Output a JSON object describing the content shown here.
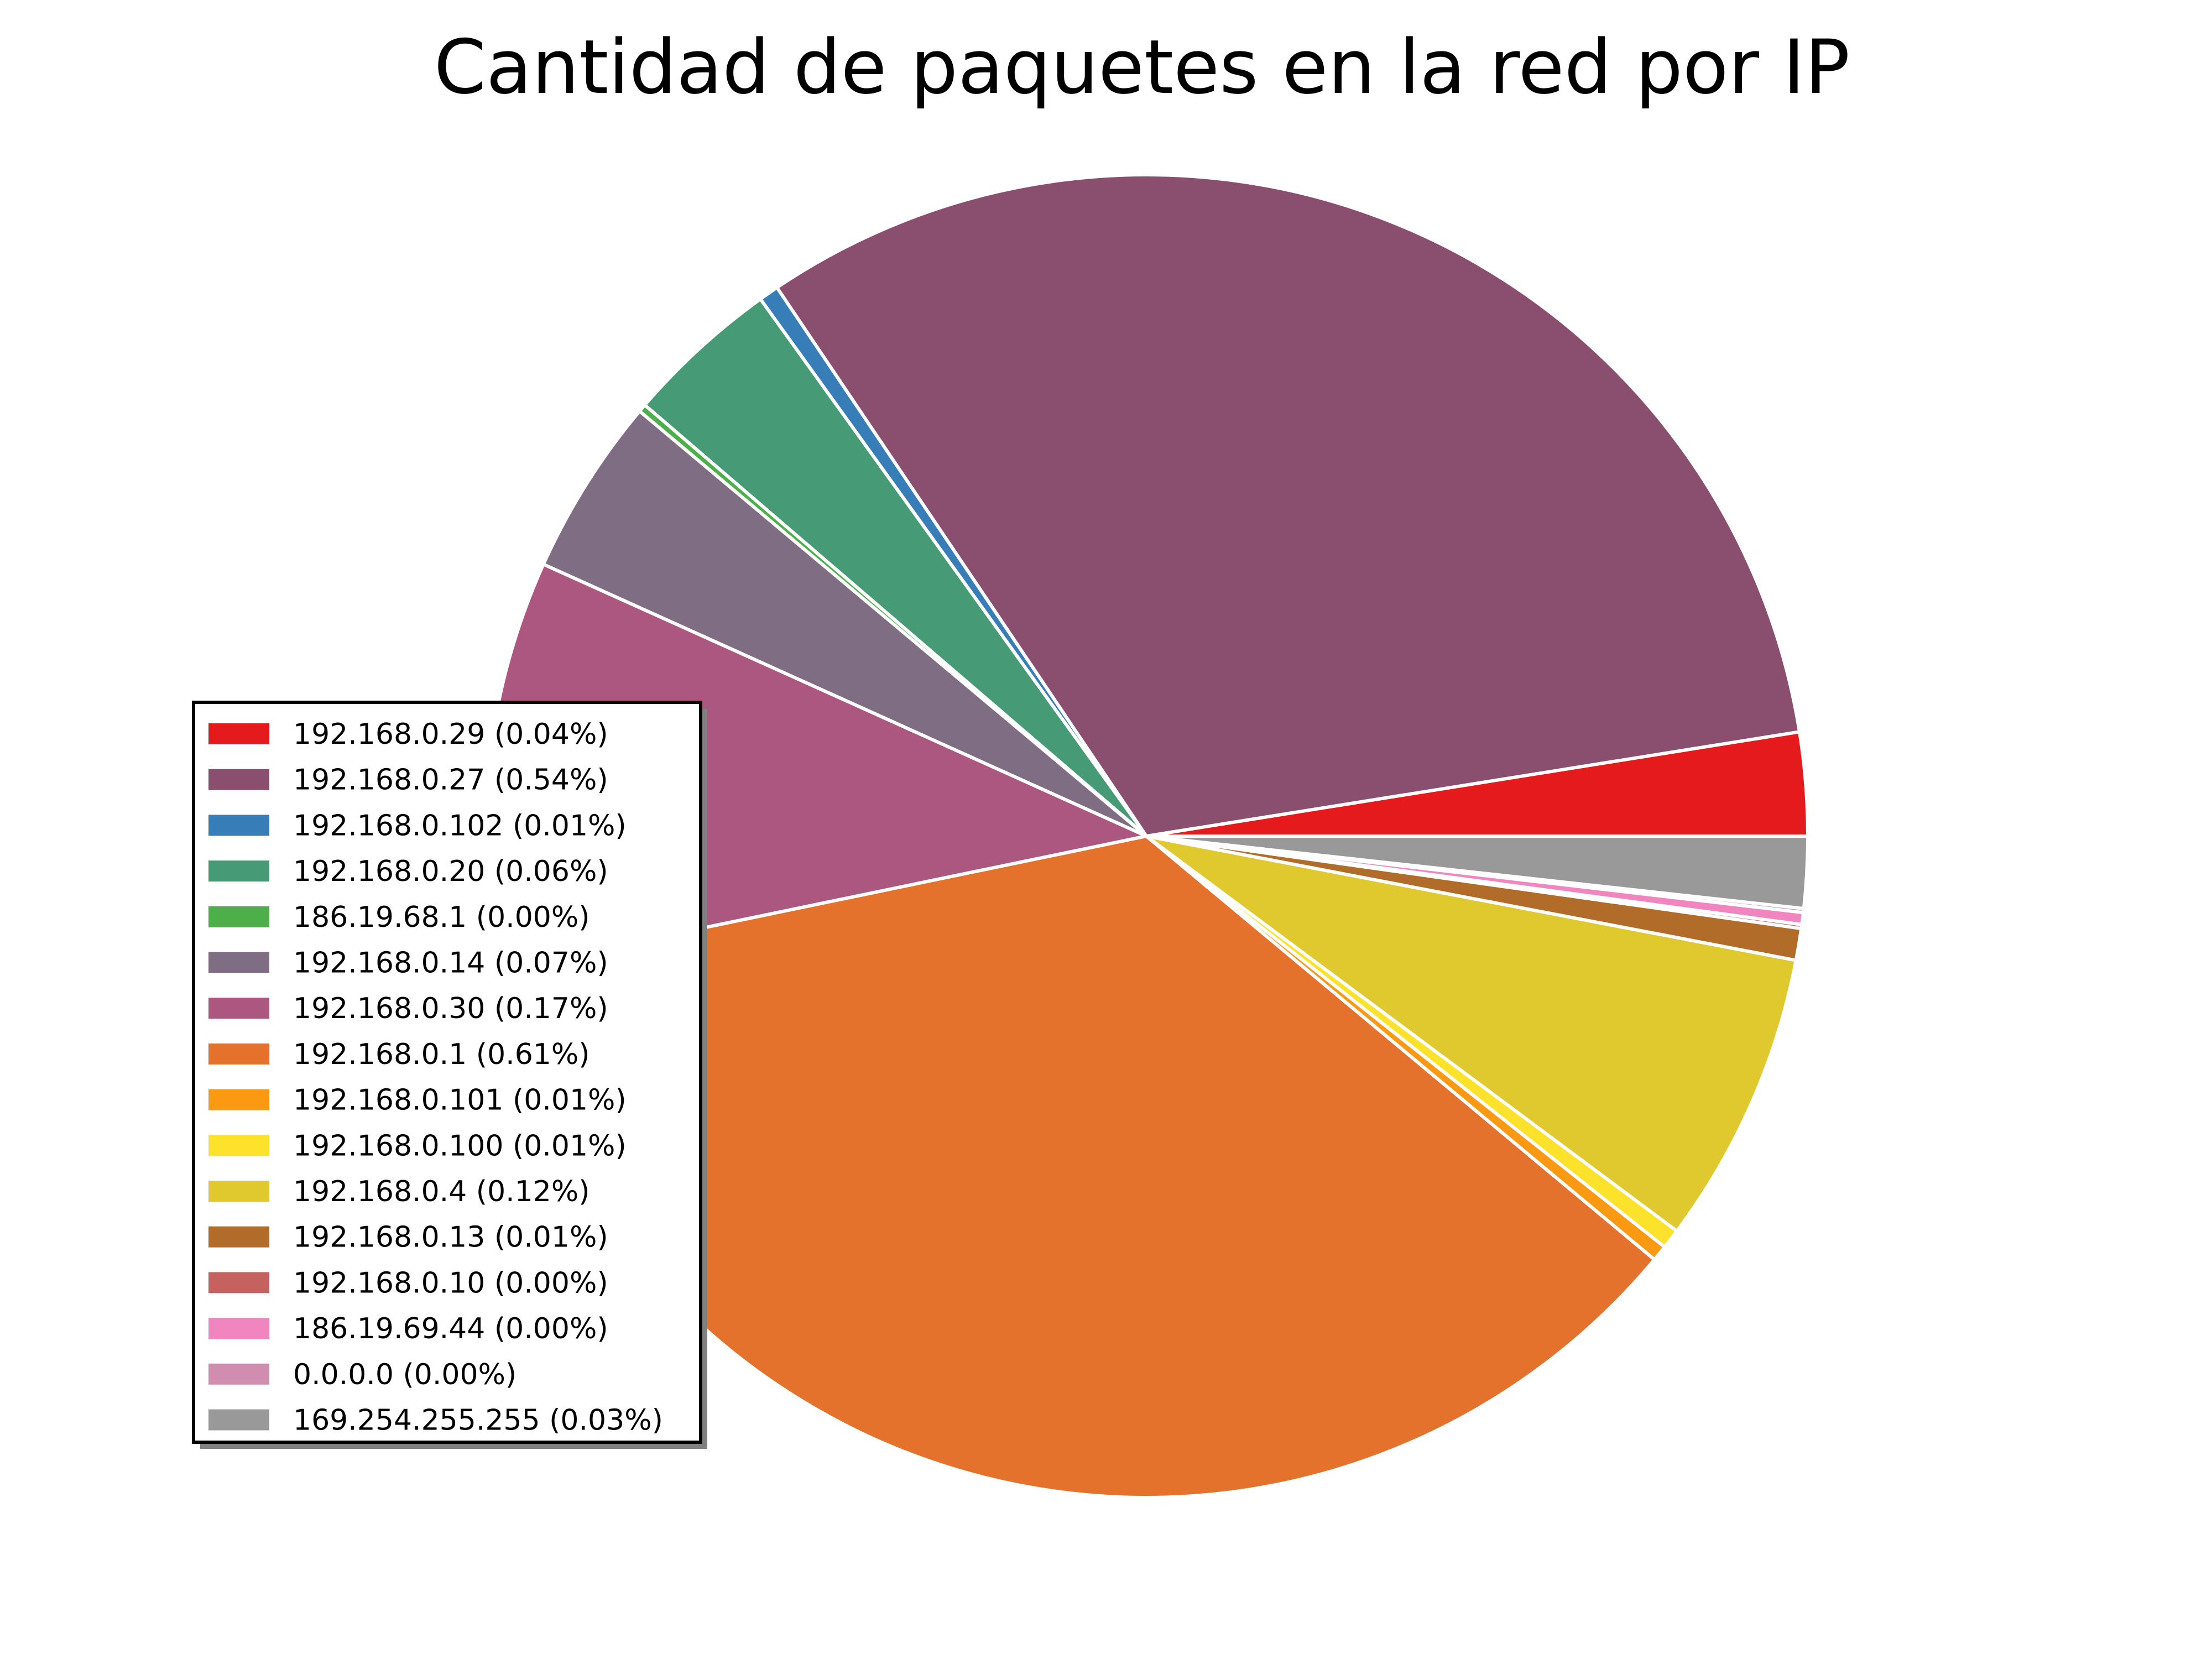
{
  "chart_data": {
    "type": "pie",
    "title": "Cantidad de paquetes en la red por IP",
    "start_angle_deg": 0,
    "direction": "counterclockwise",
    "legend_position": "center-left",
    "slice_edge_color": "#ffffff",
    "slices": [
      {
        "label": "192.168.0.29 (0.04%)",
        "value": 2.6,
        "color": "#e41a1c"
      },
      {
        "label": "192.168.0.27 (0.54%)",
        "value": 32.9,
        "color": "#8a4f6e"
      },
      {
        "label": "192.168.0.102 (0.01%)",
        "value": 0.5,
        "color": "#377eb8"
      },
      {
        "label": "192.168.0.20 (0.06%)",
        "value": 3.9,
        "color": "#469a75"
      },
      {
        "label": "186.19.68.1 (0.00%)",
        "value": 0.2,
        "color": "#4daf4a"
      },
      {
        "label": "192.168.0.14 (0.07%)",
        "value": 4.5,
        "color": "#7f6d84"
      },
      {
        "label": "192.168.0.30 (0.17%)",
        "value": 10.3,
        "color": "#ab5780"
      },
      {
        "label": "192.168.0.1 (0.61%)",
        "value": 36.8,
        "color": "#e4722c"
      },
      {
        "label": "192.168.0.101 (0.01%)",
        "value": 0.4,
        "color": "#fb9a12"
      },
      {
        "label": "192.168.0.100 (0.01%)",
        "value": 0.5,
        "color": "#fde22c"
      },
      {
        "label": "192.168.0.4 (0.12%)",
        "value": 7.4,
        "color": "#e0c82f"
      },
      {
        "label": "192.168.0.13 (0.01%)",
        "value": 0.8,
        "color": "#b16c29"
      },
      {
        "label": "192.168.0.10 (0.00%)",
        "value": 0.1,
        "color": "#c5625f"
      },
      {
        "label": "186.19.69.44 (0.00%)",
        "value": 0.3,
        "color": "#f185bf"
      },
      {
        "label": "0.0.0.0 (0.00%)",
        "value": 0.1,
        "color": "#d08daf"
      },
      {
        "label": "169.254.255.255 (0.03%)",
        "value": 1.8,
        "color": "#999999"
      }
    ]
  }
}
